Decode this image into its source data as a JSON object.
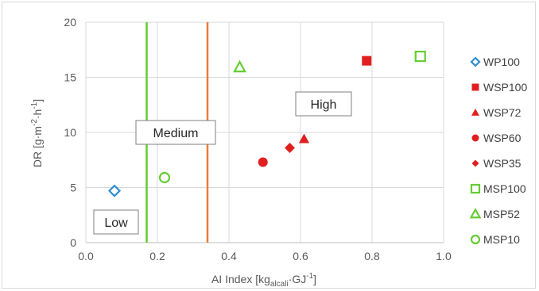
{
  "chart_data": {
    "type": "scatter",
    "xlabel": {
      "base": "AI Index [kg",
      "sub": "alcali",
      "rest": "·GJ",
      "sup": "-1",
      "end": "]"
    },
    "ylabel": {
      "base": "DR [g·m",
      "sup1": "-2",
      "mid": "·h",
      "sup2": "-1",
      "end": "]"
    },
    "xlim": [
      0.0,
      1.0
    ],
    "ylim": [
      0,
      20
    ],
    "x_ticks": [
      "0.0",
      "0.2",
      "0.4",
      "0.6",
      "0.8",
      "1.0"
    ],
    "y_ticks": [
      "0",
      "5",
      "10",
      "15",
      "20"
    ],
    "grid": true,
    "legend_position": "right",
    "thresholds": [
      {
        "x": 0.17,
        "color": "#66cc33"
      },
      {
        "x": 0.34,
        "color": "#ed7d31"
      }
    ],
    "regions": [
      {
        "label": "Low"
      },
      {
        "label": "Medium"
      },
      {
        "label": "High"
      }
    ],
    "series": [
      {
        "name": "WP100",
        "marker": "diamond-open",
        "color": "#2e8fd0",
        "points": [
          [
            0.08,
            4.7
          ]
        ]
      },
      {
        "name": "WSP100",
        "marker": "square-filled",
        "color": "#e02020",
        "points": [
          [
            0.785,
            16.5
          ]
        ]
      },
      {
        "name": "WSP72",
        "marker": "triangle-filled",
        "color": "#e02020",
        "points": [
          [
            0.61,
            9.4
          ]
        ]
      },
      {
        "name": "WSP60",
        "marker": "circle-filled",
        "color": "#e02020",
        "points": [
          [
            0.495,
            7.3
          ]
        ]
      },
      {
        "name": "WSP35",
        "marker": "diamond-filled",
        "color": "#e02020",
        "points": [
          [
            0.57,
            8.6
          ]
        ]
      },
      {
        "name": "MSP100",
        "marker": "square-open",
        "color": "#66cc33",
        "points": [
          [
            0.935,
            16.9
          ]
        ]
      },
      {
        "name": "MSP52",
        "marker": "triangle-open",
        "color": "#66cc33",
        "points": [
          [
            0.43,
            15.9
          ]
        ]
      },
      {
        "name": "MSP10",
        "marker": "circle-open",
        "color": "#66cc33",
        "points": [
          [
            0.22,
            5.9
          ]
        ]
      }
    ]
  }
}
